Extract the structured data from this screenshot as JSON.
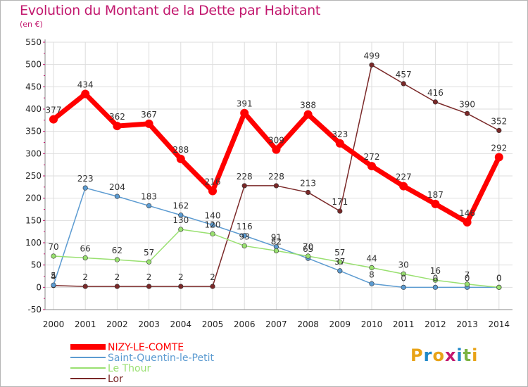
{
  "title": "Evolution du Montant de la Dette par Habitant",
  "subtitle": "(en €)",
  "logo": {
    "letters": [
      "P",
      "r",
      "o",
      "x",
      "i",
      "t",
      "i"
    ],
    "colors": [
      "#e8a317",
      "#1e88c8",
      "#e8a317",
      "#c2186e",
      "#1e88c8",
      "#7cb342",
      "#e8a317"
    ]
  },
  "chart_data": {
    "type": "line",
    "x": [
      "2000",
      "2001",
      "2002",
      "2003",
      "2004",
      "2005",
      "2006",
      "2007",
      "2008",
      "2009",
      "2010",
      "2011",
      "2012",
      "2013",
      "2014"
    ],
    "ylim": [
      -50,
      550
    ],
    "yticks": [
      "-50",
      "0",
      "50",
      "100",
      "150",
      "200",
      "250",
      "300",
      "350",
      "400",
      "450",
      "500",
      "550"
    ],
    "grid": true,
    "legend_position": "bottom-left",
    "series": [
      {
        "name": "NIZY-LE-COMTE",
        "color": "#ff0000",
        "values": [
          377,
          434,
          362,
          367,
          288,
          216,
          391,
          309,
          388,
          323,
          272,
          227,
          187,
          146,
          292
        ],
        "labels": [
          "377",
          "434",
          "362",
          "367",
          "288",
          "216",
          "391",
          "309",
          "388",
          "323",
          "272",
          "227",
          "187",
          "146",
          "292"
        ]
      },
      {
        "name": "Saint-Quentin-le-Petit",
        "color": "#5c9bd1",
        "values": [
          5,
          223,
          204,
          183,
          162,
          140,
          116,
          91,
          65,
          37,
          8,
          0,
          0,
          0,
          0
        ],
        "labels": [
          "5",
          "223",
          "204",
          "183",
          "162",
          "140",
          "116",
          "91",
          "65",
          "37",
          "8",
          "0",
          "0",
          "0",
          "0"
        ]
      },
      {
        "name": "Le Thour",
        "color": "#99e070",
        "values": [
          70,
          66,
          62,
          57,
          130,
          120,
          93,
          82,
          70,
          57,
          44,
          30,
          16,
          7,
          0
        ],
        "labels": [
          "70",
          "66",
          "62",
          "57",
          "130",
          "120",
          "93",
          "82",
          "70",
          "57",
          "44",
          "30",
          "16",
          "7",
          "0"
        ]
      },
      {
        "name": "Lor",
        "color": "#7a2828",
        "values": [
          4,
          2,
          2,
          2,
          2,
          2,
          228,
          228,
          213,
          171,
          499,
          457,
          416,
          390,
          352
        ],
        "labels": [
          "4",
          "2",
          "2",
          "2",
          "2",
          "2",
          "228",
          "228",
          "213",
          "171",
          "499",
          "457",
          "416",
          "390",
          "352"
        ]
      }
    ]
  }
}
